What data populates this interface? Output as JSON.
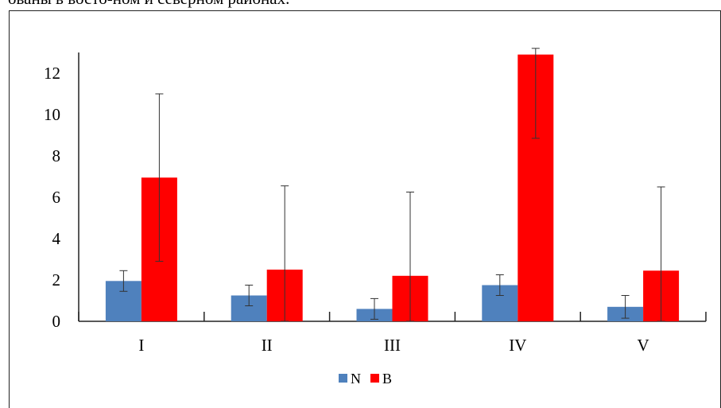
{
  "page": {
    "caption_fragment": "ованы в восто-ном  и северном районах."
  },
  "colors": {
    "N": "#4f81bd",
    "B": "#ff0000",
    "axis": "#222222",
    "errorbar": "#333333"
  },
  "chart_data": {
    "type": "bar",
    "categories": [
      "I",
      "II",
      "III",
      "IV",
      "V"
    ],
    "series": [
      {
        "name": "N",
        "values": [
          1.95,
          1.25,
          0.6,
          1.75,
          0.7
        ],
        "errors": [
          0.5,
          0.5,
          0.5,
          0.5,
          0.55
        ]
      },
      {
        "name": "B",
        "values": [
          6.95,
          2.5,
          2.2,
          12.9,
          2.45
        ],
        "errors": [
          4.05,
          4.05,
          4.05,
          4.05,
          4.05
        ]
      }
    ],
    "ylim": [
      0,
      13
    ],
    "yticks": [
      0,
      2,
      4,
      6,
      8,
      10,
      12
    ],
    "xlabel": "",
    "ylabel": "",
    "legend": {
      "position": "bottom",
      "entries": [
        "N",
        "B"
      ]
    },
    "grid": false
  }
}
